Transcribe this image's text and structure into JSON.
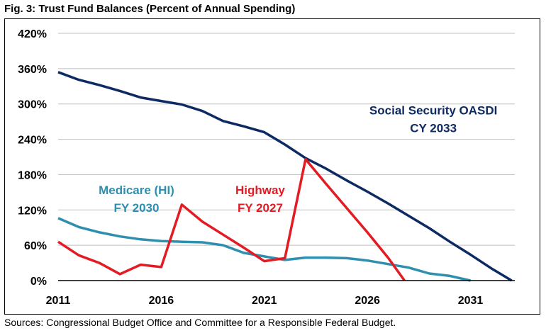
{
  "title": "Fig. 3: Trust Fund Balances (Percent of Annual Spending)",
  "source": "Sources: Congressional Budget Office and Committee for a Responsible Federal Budget.",
  "colors": {
    "oasdi": "#0d2a63",
    "hi": "#2e8fae",
    "highway": "#e31b23",
    "grid": "#bfbfbf",
    "axis": "#000000"
  },
  "chart_data": {
    "type": "line",
    "title": "Fig. 3: Trust Fund Balances (Percent of Annual Spending)",
    "xlabel": "",
    "ylabel": "",
    "xlim": [
      2011,
      2034
    ],
    "ylim": [
      0,
      420
    ],
    "x_ticks": [
      2011,
      2016,
      2021,
      2026,
      2031
    ],
    "x_tick_labels": [
      "2011",
      "2016",
      "2021",
      "2026",
      "2031"
    ],
    "y_ticks": [
      0,
      60,
      120,
      180,
      240,
      300,
      360,
      420
    ],
    "y_tick_labels": [
      "0%",
      "60%",
      "120%",
      "180%",
      "240%",
      "300%",
      "360%",
      "420%"
    ],
    "grid": true,
    "series": [
      {
        "name": "Social Security OASDI",
        "key": "oasdi",
        "x": [
          2011,
          2012,
          2013,
          2014,
          2015,
          2016,
          2017,
          2018,
          2019,
          2020,
          2021,
          2022,
          2023,
          2024,
          2025,
          2026,
          2027,
          2028,
          2029,
          2030,
          2031,
          2032,
          2033
        ],
        "y": [
          354,
          341,
          332,
          322,
          311,
          305,
          299,
          288,
          271,
          262,
          252,
          231,
          208,
          190,
          170,
          151,
          131,
          110,
          89,
          66,
          44,
          21,
          0
        ]
      },
      {
        "name": "Medicare (HI)",
        "key": "hi",
        "x": [
          2011,
          2012,
          2013,
          2014,
          2015,
          2016,
          2017,
          2018,
          2019,
          2020,
          2021,
          2022,
          2023,
          2024,
          2025,
          2026,
          2027,
          2028,
          2029,
          2030,
          2031
        ],
        "y": [
          106,
          91,
          82,
          75,
          70,
          67,
          66,
          65,
          60,
          47,
          41,
          35,
          39,
          39,
          38,
          34,
          28,
          22,
          12,
          8,
          0
        ]
      },
      {
        "name": "Highway",
        "key": "highway",
        "x": [
          2011,
          2012,
          2013,
          2014,
          2015,
          2016,
          2017,
          2018,
          2019,
          2020,
          2021,
          2022,
          2023,
          2024,
          2025,
          2026,
          2027,
          2027.8
        ],
        "y": [
          66,
          43,
          30,
          11,
          27,
          23,
          129,
          100,
          78,
          56,
          33,
          38,
          206,
          164,
          123,
          82,
          39,
          0
        ]
      }
    ],
    "annotations": [
      {
        "series": "oasdi",
        "lines": [
          "Social Security OASDI",
          "CY 2033"
        ],
        "x": 2029.2,
        "y": 282
      },
      {
        "series": "hi",
        "lines": [
          "Medicare (HI)",
          "FY 2030"
        ],
        "x": 2014.8,
        "y": 147
      },
      {
        "series": "highway",
        "lines": [
          "Highway",
          "FY 2027"
        ],
        "x": 2020.8,
        "y": 147
      }
    ]
  }
}
